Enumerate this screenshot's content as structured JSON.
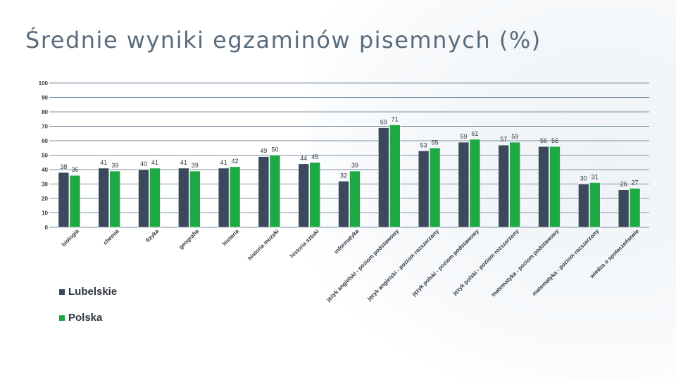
{
  "page": {
    "title": "Średnie wyniki egzaminów pisemnych (%)"
  },
  "colors": {
    "lubelskie": "#3a4a5c",
    "polska": "#1fa846",
    "grid": "#7a8fa3"
  },
  "chart_data": {
    "type": "bar",
    "title": "Średnie wyniki egzaminów pisemnych (%)",
    "ylim": [
      0,
      100
    ],
    "yticks": [
      0,
      10,
      20,
      30,
      40,
      50,
      60,
      70,
      80,
      90,
      100
    ],
    "grid": true,
    "legend_position": "bottom-left",
    "categories": [
      "biologia",
      "chemia",
      "fizyka",
      "geografia",
      "historia",
      "historia muzyki",
      "historia sztuki",
      "informatyka",
      "język angielski - poziom podstawowy",
      "język angielski - poziom rozszerzony",
      "język polski - poziom podstawowy",
      "język polski - poziom rozszerzony",
      "matematyka - poziom podstawowy",
      "matematyka - poziom rozszerzony",
      "wiedza o społeczeństwie"
    ],
    "series": [
      {
        "name": "Lubelskie",
        "values": [
          38,
          41,
          40,
          41,
          41,
          49,
          44,
          32,
          69,
          53,
          59,
          57,
          56,
          30,
          26
        ]
      },
      {
        "name": "Polska",
        "values": [
          36,
          39,
          41,
          39,
          42,
          50,
          45,
          39,
          71,
          55,
          61,
          59,
          56,
          31,
          27
        ]
      }
    ]
  }
}
